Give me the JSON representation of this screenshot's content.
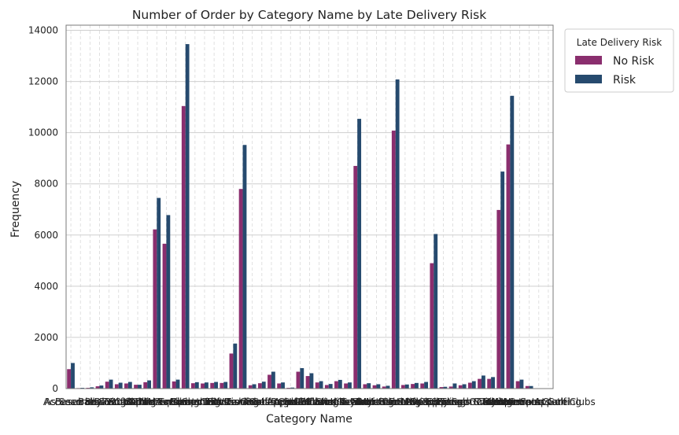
{
  "chart_data": {
    "type": "bar",
    "title": "Number of Order by Category Name by Late Delivery Risk",
    "xlabel": "Category Name",
    "ylabel": "Frequency",
    "ylim": [
      0,
      14200
    ],
    "yticks": [
      0,
      2000,
      4000,
      6000,
      8000,
      10000,
      12000,
      14000
    ],
    "grid": true,
    "legend_title": "Late Delivery Risk",
    "legend_position": "outside-top-right",
    "categories": [
      "Accessories",
      "As Seen on TV!",
      "Baby",
      "Baseball & Softball",
      "Basketball",
      "Books",
      "Boxing & MMA",
      "CDs",
      "Cameras",
      "Camping & Hiking",
      "Cardio Equipment",
      "Children's Clothing",
      "Cleats",
      "Computers",
      "Consumer Electronics",
      "Crafts",
      "DVDs",
      "Electronics",
      "Fishing",
      "Fitness Accessories",
      "Garden",
      "Girls' Apparel",
      "Golf Apparel",
      "Golf Bags & Carts",
      "Golf Balls",
      "Golf Gloves",
      "Golf Shoes",
      "Health and Beauty",
      "Hockey",
      "Hunting & Shooting",
      "Indoor/Outdoor Games",
      "Kids' Golf Clubs",
      "Lacrosse",
      "Men's Clothing",
      "Men's Footwear",
      "Men's Golf Clubs",
      "Music",
      "Op-Ed",
      "Pet Supplies",
      "Shop By Sport",
      "Soccer",
      "Sporting Goods",
      "Strength Training",
      "Tennis & Racquet",
      "Toys",
      "Trade-In",
      "Video Games",
      "Water Sports",
      "Women's Apparel",
      "Women's Clothing",
      "Women's Golf Clubs"
    ],
    "series": [
      {
        "name": "No Risk",
        "color": "#8a2e6e",
        "values": [
          760,
          20,
          30,
          90,
          270,
          170,
          200,
          150,
          250,
          6220,
          5660,
          280,
          11040,
          210,
          200,
          220,
          220,
          1370,
          7800,
          130,
          210,
          540,
          200,
          30,
          660,
          490,
          240,
          140,
          290,
          200,
          8700,
          170,
          130,
          80,
          10080,
          140,
          180,
          200,
          4900,
          60,
          80,
          130,
          230,
          380,
          380,
          6980,
          9540,
          290,
          100,
          0,
          0
        ]
      },
      {
        "name": "Risk",
        "color": "#264a6e",
        "values": [
          1000,
          30,
          50,
          120,
          350,
          230,
          260,
          150,
          320,
          7450,
          6780,
          350,
          13460,
          250,
          240,
          260,
          260,
          1760,
          9520,
          170,
          270,
          660,
          240,
          40,
          800,
          600,
          290,
          180,
          340,
          240,
          10540,
          210,
          170,
          110,
          12080,
          160,
          220,
          260,
          6040,
          70,
          200,
          170,
          290,
          510,
          450,
          8480,
          11440,
          350,
          100,
          0,
          0
        ]
      }
    ]
  }
}
